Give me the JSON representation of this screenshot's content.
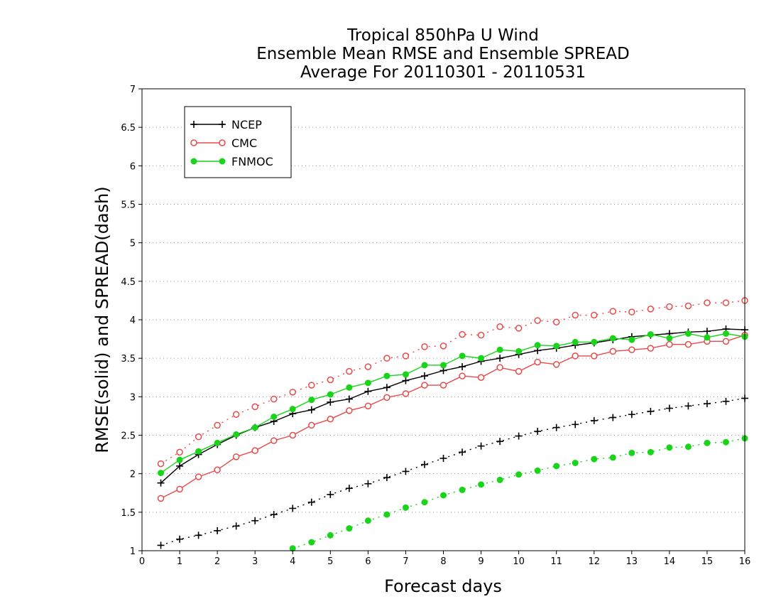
{
  "chart_data": {
    "type": "line",
    "title_lines": [
      "Tropical 850hPa U Wind",
      "Ensemble Mean RMSE and Ensemble SPREAD",
      "Average For 20110301 - 20110531"
    ],
    "xlabel": "Forecast days",
    "ylabel": "RMSE(solid) and SPREAD(dash)",
    "xlim": [
      0,
      16
    ],
    "ylim": [
      1,
      7
    ],
    "xticks": [
      "0",
      "1",
      "2",
      "3",
      "4",
      "5",
      "6",
      "7",
      "8",
      "9",
      "10",
      "11",
      "12",
      "13",
      "14",
      "15",
      "16"
    ],
    "yticks": [
      "1",
      "1.5",
      "2",
      "2.5",
      "3",
      "3.5",
      "4",
      "4.5",
      "5",
      "5.5",
      "6",
      "6.5",
      "7"
    ],
    "grid": true,
    "legend_position": "top-left",
    "x": [
      0.5,
      1,
      1.5,
      2,
      2.5,
      3,
      3.5,
      4,
      4.5,
      5,
      5.5,
      6,
      6.5,
      7,
      7.5,
      8,
      8.5,
      9,
      9.5,
      10,
      10.5,
      11,
      11.5,
      12,
      12.5,
      13,
      13.5,
      14,
      14.5,
      15,
      15.5,
      16
    ],
    "series": [
      {
        "name": "NCEP",
        "color": "#000000",
        "marker": "plus",
        "rmse": [
          1.88,
          2.1,
          2.25,
          2.38,
          2.5,
          2.6,
          2.68,
          2.78,
          2.83,
          2.93,
          2.97,
          3.07,
          3.12,
          3.21,
          3.27,
          3.34,
          3.39,
          3.46,
          3.5,
          3.55,
          3.6,
          3.63,
          3.67,
          3.7,
          3.74,
          3.78,
          3.8,
          3.82,
          3.84,
          3.85,
          3.88,
          3.87
        ],
        "spread": [
          1.07,
          1.15,
          1.2,
          1.26,
          1.32,
          1.39,
          1.47,
          1.55,
          1.63,
          1.73,
          1.81,
          1.87,
          1.95,
          2.03,
          2.12,
          2.2,
          2.28,
          2.36,
          2.42,
          2.49,
          2.55,
          2.6,
          2.64,
          2.69,
          2.73,
          2.77,
          2.81,
          2.85,
          2.88,
          2.91,
          2.94,
          2.98
        ]
      },
      {
        "name": "CMC",
        "color": "#e84a4a",
        "marker": "open-circle",
        "rmse": [
          1.68,
          1.8,
          1.96,
          2.05,
          2.22,
          2.3,
          2.43,
          2.5,
          2.63,
          2.71,
          2.82,
          2.88,
          2.99,
          3.04,
          3.15,
          3.15,
          3.27,
          3.25,
          3.38,
          3.33,
          3.45,
          3.42,
          3.53,
          3.53,
          3.59,
          3.61,
          3.63,
          3.68,
          3.68,
          3.72,
          3.72,
          3.8
        ],
        "spread": [
          2.13,
          2.28,
          2.48,
          2.63,
          2.77,
          2.87,
          2.97,
          3.06,
          3.15,
          3.22,
          3.33,
          3.39,
          3.5,
          3.53,
          3.65,
          3.66,
          3.81,
          3.8,
          3.91,
          3.89,
          3.99,
          3.97,
          4.06,
          4.06,
          4.11,
          4.1,
          4.14,
          4.17,
          4.18,
          4.22,
          4.22,
          4.25
        ]
      },
      {
        "name": "FNMOC",
        "color": "#19d419",
        "marker": "filled-circle",
        "rmse": [
          2.01,
          2.18,
          2.29,
          2.4,
          2.51,
          2.6,
          2.74,
          2.84,
          2.96,
          3.03,
          3.12,
          3.18,
          3.27,
          3.29,
          3.41,
          3.41,
          3.53,
          3.5,
          3.61,
          3.59,
          3.67,
          3.66,
          3.71,
          3.71,
          3.76,
          3.74,
          3.81,
          3.76,
          3.82,
          3.77,
          3.82,
          3.78
        ],
        "spread": [
          null,
          null,
          null,
          null,
          null,
          null,
          null,
          1.03,
          1.11,
          1.2,
          1.29,
          1.39,
          1.47,
          1.56,
          1.63,
          1.72,
          1.79,
          1.86,
          1.92,
          1.99,
          2.04,
          2.1,
          2.14,
          2.19,
          2.21,
          2.27,
          2.28,
          2.34,
          2.35,
          2.4,
          2.41,
          2.46
        ]
      }
    ]
  }
}
